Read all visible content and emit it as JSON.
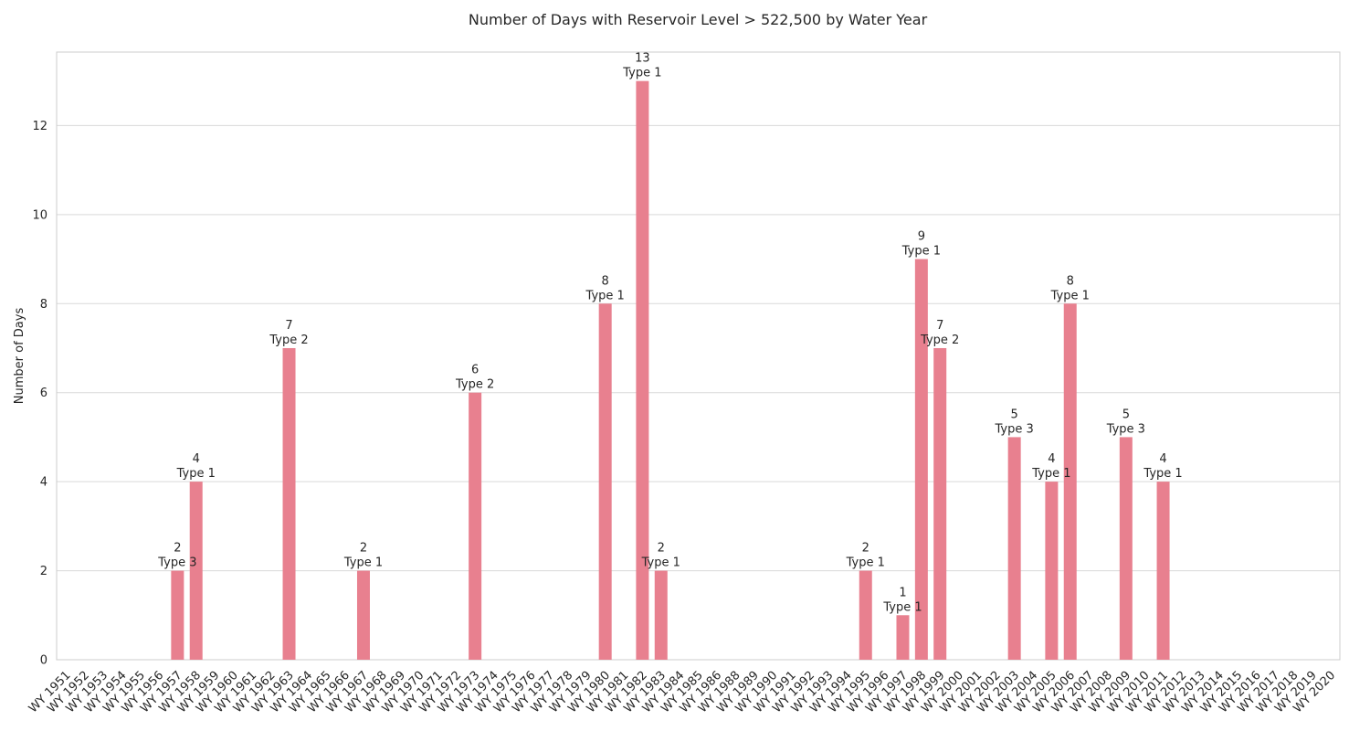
{
  "chart_data": {
    "type": "bar",
    "title": "Number of Days with Reservoir Level > 522,500 by Water Year",
    "xlabel": "",
    "ylabel": "Number of Days",
    "ylim": [
      0,
      13.65
    ],
    "yticks": [
      0,
      2,
      4,
      6,
      8,
      10,
      12
    ],
    "grid": "horizontal",
    "bar_color": "#e8808f",
    "categories": [
      "WY 1951",
      "WY 1952",
      "WY 1953",
      "WY 1954",
      "WY 1955",
      "WY 1956",
      "WY 1957",
      "WY 1958",
      "WY 1959",
      "WY 1960",
      "WY 1961",
      "WY 1962",
      "WY 1963",
      "WY 1964",
      "WY 1965",
      "WY 1966",
      "WY 1967",
      "WY 1968",
      "WY 1969",
      "WY 1970",
      "WY 1971",
      "WY 1972",
      "WY 1973",
      "WY 1974",
      "WY 1975",
      "WY 1976",
      "WY 1977",
      "WY 1978",
      "WY 1979",
      "WY 1980",
      "WY 1981",
      "WY 1982",
      "WY 1983",
      "WY 1984",
      "WY 1985",
      "WY 1986",
      "WY 1988",
      "WY 1989",
      "WY 1990",
      "WY 1991",
      "WY 1992",
      "WY 1993",
      "WY 1994",
      "WY 1995",
      "WY 1996",
      "WY 1997",
      "WY 1998",
      "WY 1999",
      "WY 2000",
      "WY 2001",
      "WY 2002",
      "WY 2003",
      "WY 2004",
      "WY 2005",
      "WY 2006",
      "WY 2007",
      "WY 2008",
      "WY 2009",
      "WY 2010",
      "WY 2011",
      "WY 2012",
      "WY 2013",
      "WY 2014",
      "WY 2015",
      "WY 2016",
      "WY 2017",
      "WY 2018",
      "WY 2019",
      "WY 2020"
    ],
    "values": [
      0,
      0,
      0,
      0,
      0,
      0,
      2,
      4,
      0,
      0,
      0,
      0,
      7,
      0,
      0,
      0,
      2,
      0,
      0,
      0,
      0,
      0,
      6,
      0,
      0,
      0,
      0,
      0,
      0,
      8,
      0,
      13,
      2,
      0,
      0,
      0,
      0,
      0,
      0,
      0,
      0,
      0,
      0,
      2,
      0,
      1,
      9,
      7,
      0,
      0,
      0,
      5,
      0,
      4,
      8,
      0,
      0,
      5,
      0,
      4,
      0,
      0,
      0,
      0,
      0,
      0,
      0,
      0,
      0
    ],
    "bar_labels": [
      {
        "index": 6,
        "value": "2",
        "type": "Type 3"
      },
      {
        "index": 7,
        "value": "4",
        "type": "Type 1"
      },
      {
        "index": 12,
        "value": "7",
        "type": "Type 2"
      },
      {
        "index": 16,
        "value": "2",
        "type": "Type 1"
      },
      {
        "index": 22,
        "value": "6",
        "type": "Type 2"
      },
      {
        "index": 29,
        "value": "8",
        "type": "Type 1"
      },
      {
        "index": 31,
        "value": "13",
        "type": "Type 1"
      },
      {
        "index": 32,
        "value": "2",
        "type": "Type 1"
      },
      {
        "index": 43,
        "value": "2",
        "type": "Type 1"
      },
      {
        "index": 45,
        "value": "1",
        "type": "Type 1"
      },
      {
        "index": 46,
        "value": "9",
        "type": "Type 1"
      },
      {
        "index": 47,
        "value": "7",
        "type": "Type 2"
      },
      {
        "index": 51,
        "value": "5",
        "type": "Type 3"
      },
      {
        "index": 53,
        "value": "4",
        "type": "Type 1"
      },
      {
        "index": 54,
        "value": "8",
        "type": "Type 1"
      },
      {
        "index": 57,
        "value": "5",
        "type": "Type 3"
      },
      {
        "index": 59,
        "value": "4",
        "type": "Type 1"
      }
    ]
  }
}
